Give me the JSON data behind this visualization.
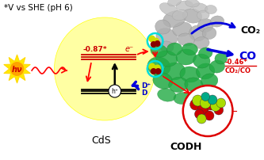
{
  "title_text": "*V vs SHE (pH 6)",
  "title_fontsize": 7.5,
  "bg_color": "#ffffff",
  "cds_label": "CdS",
  "codh_label": "CODH",
  "minus087_label": "-0.87*",
  "minus046_label": "-0.46*",
  "co2_label": "CO₂",
  "co_label": "CO",
  "co2co_label": "CO₂/CO",
  "hv_label": "hν",
  "dplus_label": "D⁺",
  "d_label": "D",
  "hole_label": "h⁺",
  "e_label": "e⁻"
}
